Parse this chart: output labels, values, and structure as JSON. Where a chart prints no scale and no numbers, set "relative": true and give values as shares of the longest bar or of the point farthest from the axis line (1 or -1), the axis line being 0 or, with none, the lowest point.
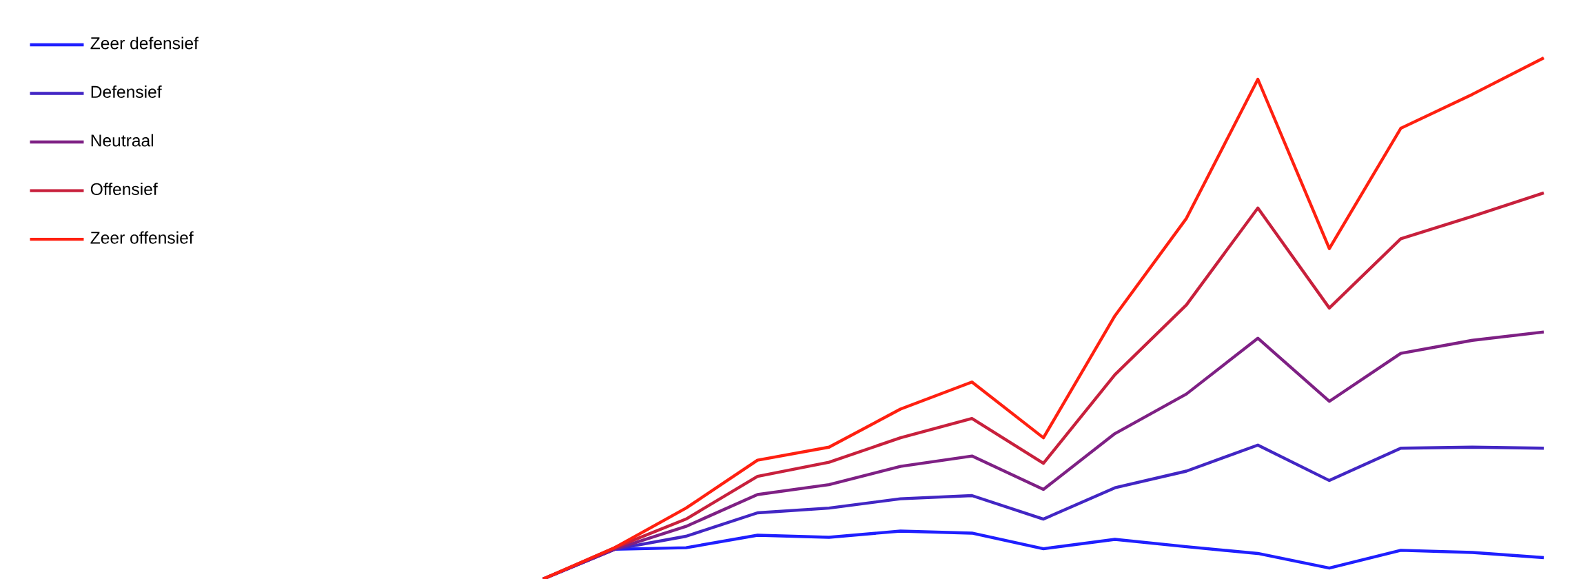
{
  "chart_data": {
    "type": "line",
    "relative": true,
    "legend": "top left",
    "categories": [
      null,
      null,
      null,
      null,
      null,
      null,
      null,
      null,
      null,
      null,
      null,
      null,
      null,
      null,
      null
    ],
    "series": [
      {
        "name": "Zeer defensief",
        "color": "#1f1fff",
        "values": [
          0,
          0.057,
          0.06,
          0.084,
          0.08,
          0.092,
          0.088,
          0.058,
          0.076,
          0.062,
          0.049,
          0.021,
          0.055,
          0.051,
          0.041
        ]
      },
      {
        "name": "Defensief",
        "color": "#4226c4",
        "values": [
          0,
          0.057,
          0.082,
          0.127,
          0.136,
          0.154,
          0.16,
          0.115,
          0.175,
          0.207,
          0.257,
          0.189,
          0.251,
          0.253,
          0.251
        ]
      },
      {
        "name": "Neutraal",
        "color": "#7e2084",
        "values": [
          0,
          0.057,
          0.101,
          0.162,
          0.181,
          0.216,
          0.236,
          0.172,
          0.279,
          0.355,
          0.462,
          0.341,
          0.433,
          0.458,
          0.474
        ]
      },
      {
        "name": "Offensief",
        "color": "#c8203c",
        "values": [
          0,
          0.06,
          0.115,
          0.197,
          0.224,
          0.271,
          0.308,
          0.222,
          0.392,
          0.526,
          0.712,
          0.52,
          0.653,
          0.696,
          0.741
        ]
      },
      {
        "name": "Zeer offensief",
        "color": "#ff2010",
        "values": [
          0,
          0.06,
          0.136,
          0.228,
          0.253,
          0.326,
          0.378,
          0.271,
          0.505,
          0.692,
          0.959,
          0.634,
          0.865,
          0.93,
          1
        ]
      }
    ]
  }
}
